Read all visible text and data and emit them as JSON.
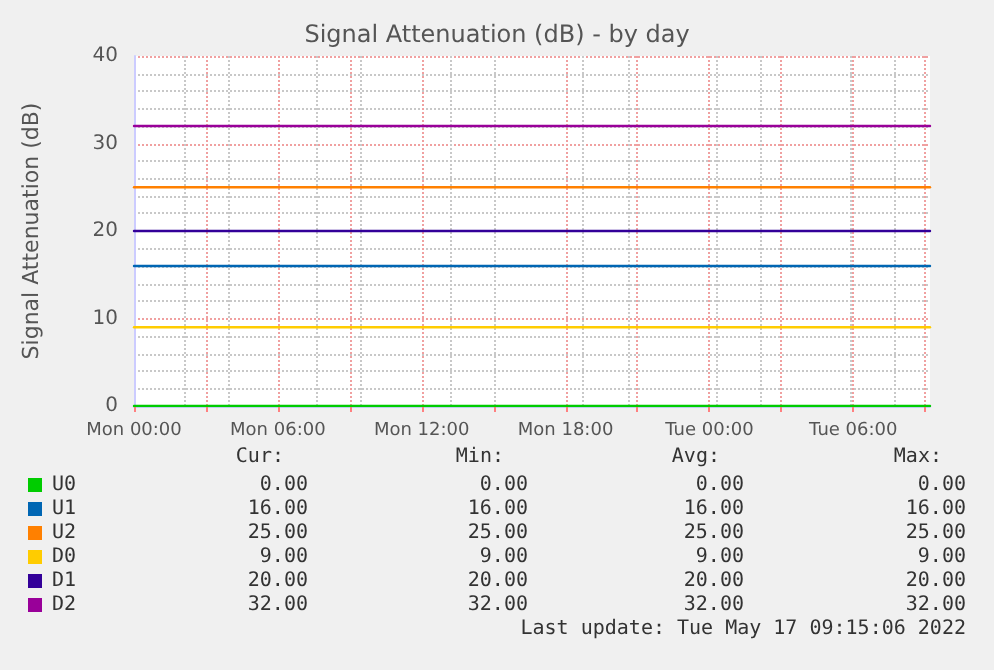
{
  "chart_data": {
    "type": "line",
    "title": "Signal Attenuation (dB) - by day",
    "ylabel": "Signal Attenuation (dB)",
    "x": [
      "2022-05-16T00:00",
      "2022-05-17T09:12"
    ],
    "xlim": [
      "2022-05-16T00:00",
      "2022-05-17T09:12"
    ],
    "xticks": [
      {
        "value": "2022-05-16T00:00",
        "label": "Mon 00:00"
      },
      {
        "value": "2022-05-16T03:00",
        "label": null
      },
      {
        "value": "2022-05-16T06:00",
        "label": "Mon 06:00"
      },
      {
        "value": "2022-05-16T09:00",
        "label": null
      },
      {
        "value": "2022-05-16T12:00",
        "label": "Mon 12:00"
      },
      {
        "value": "2022-05-16T15:00",
        "label": null
      },
      {
        "value": "2022-05-16T18:00",
        "label": "Mon 18:00"
      },
      {
        "value": "2022-05-16T21:00",
        "label": null
      },
      {
        "value": "2022-05-17T00:00",
        "label": "Tue 00:00"
      },
      {
        "value": "2022-05-17T03:00",
        "label": null
      },
      {
        "value": "2022-05-17T06:00",
        "label": "Tue 06:00"
      },
      {
        "value": "2022-05-17T09:00",
        "label": null
      }
    ],
    "ylim": [
      0,
      40
    ],
    "yticks": [
      0,
      10,
      20,
      30,
      40
    ],
    "grid": true,
    "legend": "bottom",
    "marker": "none",
    "line_style": "solid",
    "series": [
      {
        "name": "U0",
        "color": "#00cc00",
        "values": [
          0,
          0
        ]
      },
      {
        "name": "U1",
        "color": "#0066b3",
        "values": [
          16,
          16
        ]
      },
      {
        "name": "U2",
        "color": "#ff8000",
        "values": [
          25,
          25
        ]
      },
      {
        "name": "D0",
        "color": "#ffcc00",
        "values": [
          9,
          9
        ]
      },
      {
        "name": "D1",
        "color": "#330099",
        "values": [
          20,
          20
        ]
      },
      {
        "name": "D2",
        "color": "#990099",
        "values": [
          32,
          32
        ]
      }
    ],
    "annotations": [
      "Cur:",
      "Min:",
      "Avg:",
      "Max:",
      "0.00",
      "0.00",
      "0.00",
      "0.00",
      "16.00",
      "16.00",
      "16.00",
      "16.00",
      "25.00",
      "25.00",
      "25.00",
      "25.00",
      "9.00",
      "9.00",
      "9.00",
      "9.00",
      "20.00",
      "20.00",
      "20.00",
      "20.00",
      "32.00",
      "32.00",
      "32.00",
      "32.00",
      "Last update: Tue May 17 09:15:06 2022"
    ]
  }
}
